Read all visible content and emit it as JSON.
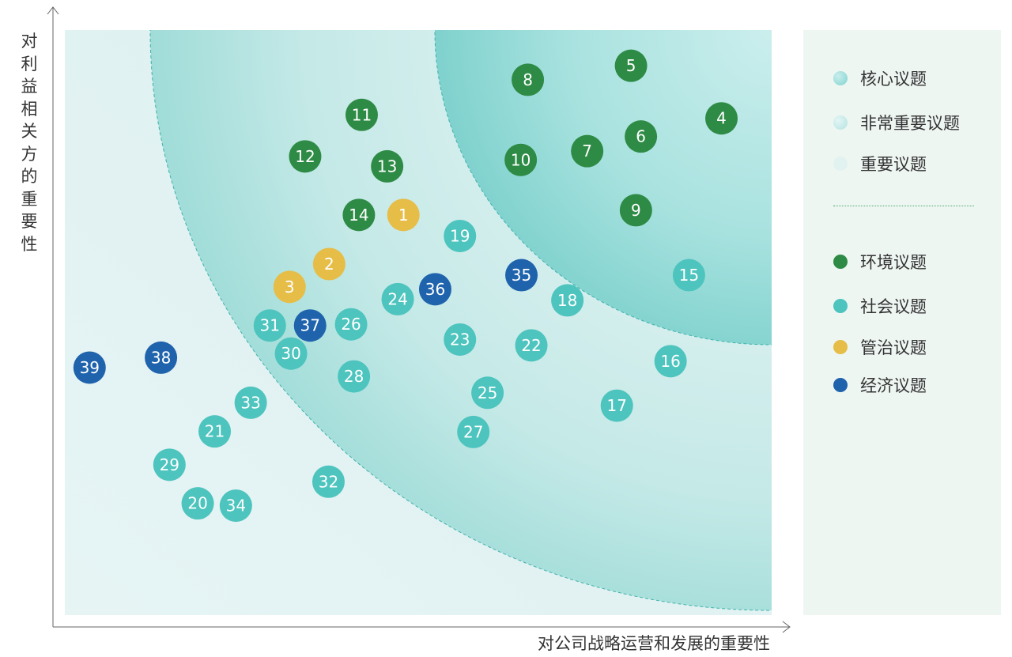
{
  "chart_data": {
    "type": "scatter",
    "xlabel": "对公司战略运营和发展的重要性",
    "ylabel": "对利益相关方的重要性",
    "xlim": [
      0,
      100
    ],
    "ylim": [
      0,
      100
    ],
    "grid": false,
    "legend_position": "right",
    "zones": [
      {
        "label": "核心议题",
        "color": "#7ed3d0"
      },
      {
        "label": "非常重要议题",
        "color": "#b3e3e1"
      },
      {
        "label": "重要议题",
        "color": "#e6f4f4"
      }
    ],
    "categories": [
      {
        "key": "env",
        "label": "环境议题",
        "color": "#2e8b45"
      },
      {
        "key": "soc",
        "label": "社会议题",
        "color": "#4dc4be"
      },
      {
        "key": "gov",
        "label": "管治议题",
        "color": "#e6bd47"
      },
      {
        "key": "eco",
        "label": "经济议题",
        "color": "#1f63ad"
      }
    ],
    "points": [
      {
        "id": "1",
        "cat": "gov",
        "x": 47.9,
        "y": 68.4
      },
      {
        "id": "2",
        "cat": "gov",
        "x": 37.4,
        "y": 60.0
      },
      {
        "id": "3",
        "cat": "gov",
        "x": 31.8,
        "y": 56.1
      },
      {
        "id": "4",
        "cat": "env",
        "x": 92.9,
        "y": 84.9
      },
      {
        "id": "5",
        "cat": "env",
        "x": 80.1,
        "y": 93.9
      },
      {
        "id": "6",
        "cat": "env",
        "x": 81.5,
        "y": 81.8
      },
      {
        "id": "7",
        "cat": "env",
        "x": 73.9,
        "y": 79.3
      },
      {
        "id": "8",
        "cat": "env",
        "x": 65.5,
        "y": 91.5
      },
      {
        "id": "9",
        "cat": "env",
        "x": 80.8,
        "y": 69.2
      },
      {
        "id": "10",
        "cat": "env",
        "x": 64.5,
        "y": 77.8
      },
      {
        "id": "11",
        "cat": "env",
        "x": 42.0,
        "y": 85.5
      },
      {
        "id": "12",
        "cat": "env",
        "x": 34.0,
        "y": 78.4
      },
      {
        "id": "13",
        "cat": "env",
        "x": 45.6,
        "y": 76.7
      },
      {
        "id": "14",
        "cat": "env",
        "x": 41.6,
        "y": 68.4
      },
      {
        "id": "15",
        "cat": "soc",
        "x": 88.3,
        "y": 58.1
      },
      {
        "id": "16",
        "cat": "soc",
        "x": 85.7,
        "y": 43.4
      },
      {
        "id": "17",
        "cat": "soc",
        "x": 78.1,
        "y": 35.8
      },
      {
        "id": "18",
        "cat": "soc",
        "x": 71.1,
        "y": 53.8
      },
      {
        "id": "19",
        "cat": "soc",
        "x": 55.9,
        "y": 64.8
      },
      {
        "id": "20",
        "cat": "soc",
        "x": 18.8,
        "y": 19.1
      },
      {
        "id": "21",
        "cat": "soc",
        "x": 21.2,
        "y": 31.4
      },
      {
        "id": "22",
        "cat": "soc",
        "x": 66.0,
        "y": 46.1
      },
      {
        "id": "23",
        "cat": "soc",
        "x": 55.9,
        "y": 47.1
      },
      {
        "id": "24",
        "cat": "soc",
        "x": 47.1,
        "y": 54.0
      },
      {
        "id": "25",
        "cat": "soc",
        "x": 59.8,
        "y": 38.0
      },
      {
        "id": "26",
        "cat": "soc",
        "x": 40.5,
        "y": 49.7
      },
      {
        "id": "27",
        "cat": "soc",
        "x": 57.8,
        "y": 31.3
      },
      {
        "id": "28",
        "cat": "soc",
        "x": 40.9,
        "y": 40.8
      },
      {
        "id": "29",
        "cat": "soc",
        "x": 14.8,
        "y": 25.7
      },
      {
        "id": "30",
        "cat": "soc",
        "x": 32.0,
        "y": 44.7
      },
      {
        "id": "31",
        "cat": "soc",
        "x": 29.0,
        "y": 49.5
      },
      {
        "id": "32",
        "cat": "soc",
        "x": 37.3,
        "y": 22.8
      },
      {
        "id": "33",
        "cat": "soc",
        "x": 26.3,
        "y": 36.3
      },
      {
        "id": "34",
        "cat": "soc",
        "x": 24.2,
        "y": 18.7
      },
      {
        "id": "35",
        "cat": "eco",
        "x": 64.6,
        "y": 58.1
      },
      {
        "id": "36",
        "cat": "eco",
        "x": 52.4,
        "y": 55.7
      },
      {
        "id": "37",
        "cat": "eco",
        "x": 34.7,
        "y": 49.5
      },
      {
        "id": "38",
        "cat": "eco",
        "x": 13.6,
        "y": 44.0
      },
      {
        "id": "39",
        "cat": "eco",
        "x": 3.5,
        "y": 42.3
      }
    ]
  },
  "legend": {
    "zones": [
      "核心议题",
      "非常重要议题",
      "重要议题"
    ],
    "categories": [
      "环境议题",
      "社会议题",
      "管治议题",
      "经济议题"
    ]
  }
}
